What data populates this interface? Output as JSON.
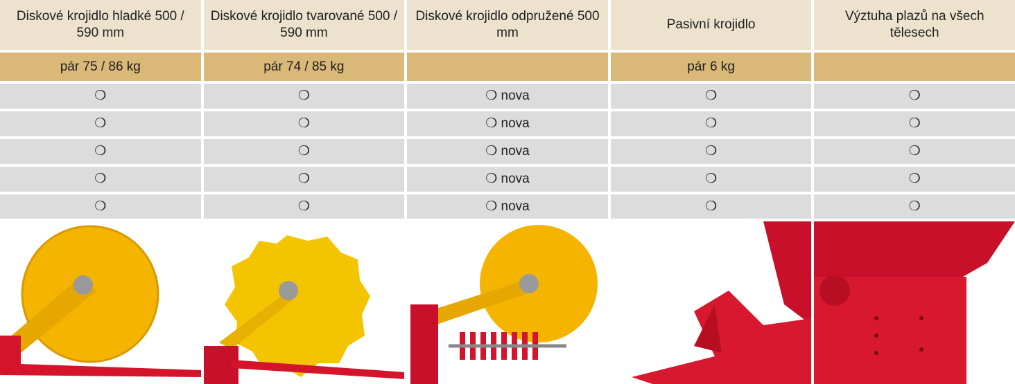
{
  "table": {
    "header": [
      "Diskové krojidlo hladké 500 / 590 mm",
      "Diskové krojidlo tvarované 500 / 590 mm",
      "Diskové krojidlo odpružené 500 mm",
      "Pasivní krojidlo",
      "Výztuha plazů na všech tělesech"
    ],
    "weights": [
      "pár 75 / 86 kg",
      "pár 74 / 85 kg",
      null,
      "pár 6 kg",
      null
    ],
    "rows": [
      [
        "❍",
        "❍",
        "❍ nova",
        "❍",
        "❍"
      ],
      [
        "❍",
        "❍",
        "❍ nova",
        "❍",
        "❍"
      ],
      [
        "❍",
        "❍",
        "❍ nova",
        "❍",
        "❍"
      ],
      [
        "❍",
        "❍",
        "❍ nova",
        "❍",
        "❍"
      ],
      [
        "❍",
        "❍",
        "❍ nova",
        "❍",
        "❍"
      ]
    ]
  }
}
